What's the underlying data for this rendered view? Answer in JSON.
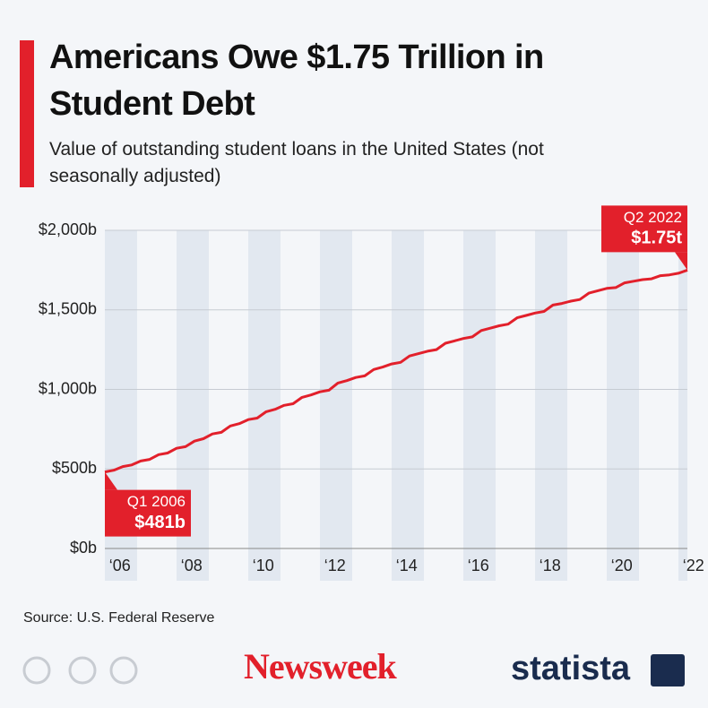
{
  "chart_data": {
    "type": "line",
    "title": "Americans Owe $1.75 Trillion in Student Debt",
    "subtitle": "Value of outstanding student loans in the United States (not seasonally adjusted)",
    "source": "Source: U.S. Federal Reserve",
    "brands": [
      "Newsweek",
      "statista"
    ],
    "color": "#e2202b",
    "x": [
      2006,
      2006.25,
      2006.5,
      2006.75,
      2007,
      2007.25,
      2007.5,
      2007.75,
      2008,
      2008.25,
      2008.5,
      2008.75,
      2009,
      2009.25,
      2009.5,
      2009.75,
      2010,
      2010.25,
      2010.5,
      2010.75,
      2011,
      2011.25,
      2011.5,
      2011.75,
      2012,
      2012.25,
      2012.5,
      2012.75,
      2013,
      2013.25,
      2013.5,
      2013.75,
      2014,
      2014.25,
      2014.5,
      2014.75,
      2015,
      2015.25,
      2015.5,
      2015.75,
      2016,
      2016.25,
      2016.5,
      2016.75,
      2017,
      2017.25,
      2017.5,
      2017.75,
      2018,
      2018.25,
      2018.5,
      2018.75,
      2019,
      2019.25,
      2019.5,
      2019.75,
      2020,
      2020.25,
      2020.5,
      2020.75,
      2021,
      2021.25,
      2021.5,
      2021.75,
      2022,
      2022.25
    ],
    "values": [
      481,
      492,
      515,
      525,
      550,
      560,
      590,
      600,
      630,
      640,
      675,
      690,
      720,
      730,
      770,
      785,
      810,
      820,
      860,
      875,
      900,
      910,
      950,
      965,
      985,
      995,
      1040,
      1055,
      1075,
      1085,
      1125,
      1140,
      1160,
      1170,
      1210,
      1225,
      1240,
      1250,
      1290,
      1305,
      1320,
      1330,
      1370,
      1385,
      1400,
      1410,
      1450,
      1465,
      1480,
      1490,
      1530,
      1540,
      1555,
      1565,
      1605,
      1620,
      1635,
      1640,
      1670,
      1680,
      1690,
      1695,
      1715,
      1720,
      1730,
      1750
    ],
    "value_labels": [
      "$481b",
      null,
      null,
      null,
      null,
      null,
      null,
      null,
      null,
      null,
      null,
      null,
      null,
      null,
      null,
      null,
      null,
      null,
      null,
      null,
      null,
      null,
      null,
      null,
      null,
      null,
      null,
      null,
      null,
      null,
      null,
      null,
      null,
      null,
      null,
      null,
      null,
      null,
      null,
      null,
      null,
      null,
      null,
      null,
      null,
      null,
      null,
      null,
      null,
      null,
      null,
      null,
      null,
      null,
      null,
      null,
      null,
      null,
      null,
      null,
      null,
      null,
      null,
      null,
      null,
      "$1.75t"
    ],
    "point_labels": [
      "Q1 2006",
      null,
      null,
      null,
      null,
      null,
      null,
      null,
      null,
      null,
      null,
      null,
      null,
      null,
      null,
      null,
      null,
      null,
      null,
      null,
      null,
      null,
      null,
      null,
      null,
      null,
      null,
      null,
      null,
      null,
      null,
      null,
      null,
      null,
      null,
      null,
      null,
      null,
      null,
      null,
      null,
      null,
      null,
      null,
      null,
      null,
      null,
      null,
      null,
      null,
      null,
      null,
      null,
      null,
      null,
      null,
      null,
      null,
      null,
      null,
      null,
      null,
      null,
      null,
      null,
      "Q2 2022"
    ],
    "xlim": [
      2006,
      2022.25
    ],
    "xticks": [
      {
        "value": 2006,
        "label": "‘06"
      },
      {
        "value": 2008,
        "label": "‘08"
      },
      {
        "value": 2010,
        "label": "‘10"
      },
      {
        "value": 2012,
        "label": "‘12"
      },
      {
        "value": 2014,
        "label": "‘14"
      },
      {
        "value": 2016,
        "label": "‘16"
      },
      {
        "value": 2018,
        "label": "‘18"
      },
      {
        "value": 2020,
        "label": "‘20"
      },
      {
        "value": 2022,
        "label": "‘22"
      }
    ],
    "ylim": [
      0,
      2000
    ],
    "yticks": [
      {
        "value": 0,
        "label": "$0b"
      },
      {
        "value": 500,
        "label": "$500b"
      },
      {
        "value": 1000,
        "label": "$1,000b"
      },
      {
        "value": 1500,
        "label": "$1,500b"
      },
      {
        "value": 2000,
        "label": "$2,000b"
      }
    ],
    "grid": true
  }
}
